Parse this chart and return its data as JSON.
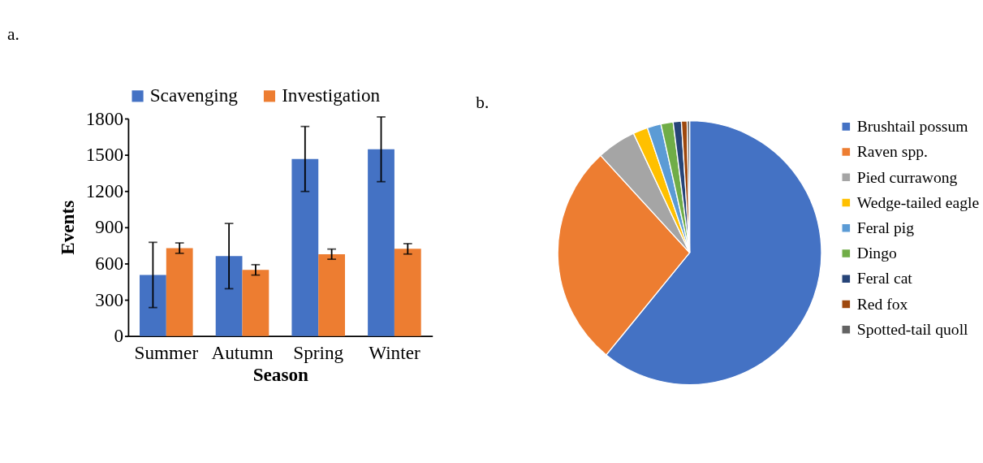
{
  "chart_data": [
    {
      "type": "bar",
      "title": "a.",
      "xlabel": "Season",
      "ylabel": "Events",
      "categories": [
        "Summer",
        "Autumn",
        "Spring",
        "Winter"
      ],
      "series": [
        {
          "name": "Scavenging",
          "color": "#4472c4",
          "values": [
            506,
            662,
            1466,
            1546
          ],
          "errors": [
            270,
            270,
            269,
            268
          ]
        },
        {
          "name": "Investigation",
          "color": "#ed7d31",
          "values": [
            728,
            548,
            678,
            722
          ],
          "errors": [
            43,
            43,
            42,
            43
          ]
        }
      ],
      "ylim": [
        0,
        1800
      ],
      "yticks": [
        0,
        300,
        600,
        900,
        1200,
        1500,
        1800
      ],
      "grid": false,
      "legend": "top"
    },
    {
      "type": "pie",
      "title": "b.",
      "categories": [
        "Brushtail possum",
        "Raven spp.",
        "Pied currawong",
        "Wedge-tailed eagle",
        "Feral pig",
        "Dingo",
        "Feral cat",
        "Red fox",
        "Spotted-tail quoll"
      ],
      "values": [
        60.9,
        27.3,
        4.8,
        1.8,
        1.7,
        1.5,
        1.0,
        0.7,
        0.3
      ],
      "colors": [
        "#4472c4",
        "#ed7d31",
        "#a5a5a5",
        "#ffc000",
        "#5b9bd5",
        "#70ad47",
        "#264478",
        "#9e480e",
        "#636363"
      ],
      "legend": "right"
    }
  ]
}
